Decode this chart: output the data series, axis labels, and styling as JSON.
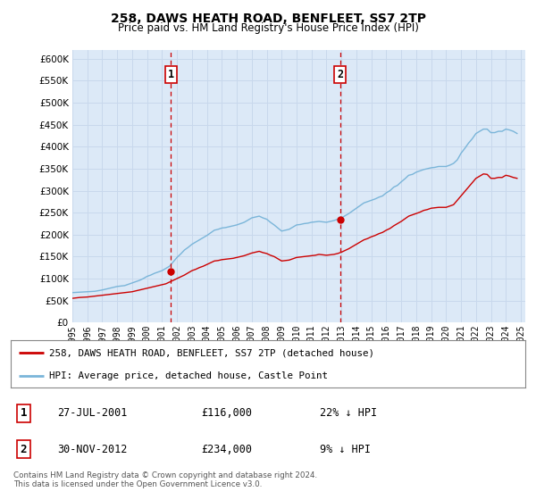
{
  "title": "258, DAWS HEATH ROAD, BENFLEET, SS7 2TP",
  "subtitle": "Price paid vs. HM Land Registry's House Price Index (HPI)",
  "plot_bg_color": "#dce9f7",
  "grid_color": "#c8d8ec",
  "ylim": [
    0,
    620000
  ],
  "yticks": [
    0,
    50000,
    100000,
    150000,
    200000,
    250000,
    300000,
    350000,
    400000,
    450000,
    500000,
    550000,
    600000
  ],
  "ytick_labels": [
    "£0",
    "£50K",
    "£100K",
    "£150K",
    "£200K",
    "£250K",
    "£300K",
    "£350K",
    "£400K",
    "£450K",
    "£500K",
    "£550K",
    "£600K"
  ],
  "red_line_label": "258, DAWS HEATH ROAD, BENFLEET, SS7 2TP (detached house)",
  "blue_line_label": "HPI: Average price, detached house, Castle Point",
  "marker1_x_year": 2001.58,
  "marker1_y": 116000,
  "marker2_x_year": 2012.92,
  "marker2_y": 234000,
  "footer": "Contains HM Land Registry data © Crown copyright and database right 2024.\nThis data is licensed under the Open Government Licence v3.0.",
  "years": [
    1995.0,
    1995.25,
    1995.5,
    1995.75,
    1996.0,
    1996.25,
    1996.5,
    1996.75,
    1997.0,
    1997.25,
    1997.5,
    1997.75,
    1998.0,
    1998.25,
    1998.5,
    1998.75,
    1999.0,
    1999.25,
    1999.5,
    1999.75,
    2000.0,
    2000.25,
    2000.5,
    2000.75,
    2001.0,
    2001.25,
    2001.5,
    2001.75,
    2002.0,
    2002.25,
    2002.5,
    2002.75,
    2003.0,
    2003.25,
    2003.5,
    2003.75,
    2004.0,
    2004.25,
    2004.5,
    2004.75,
    2005.0,
    2005.25,
    2005.5,
    2005.75,
    2006.0,
    2006.25,
    2006.5,
    2006.75,
    2007.0,
    2007.25,
    2007.5,
    2007.75,
    2008.0,
    2008.25,
    2008.5,
    2008.75,
    2009.0,
    2009.25,
    2009.5,
    2009.75,
    2010.0,
    2010.25,
    2010.5,
    2010.75,
    2011.0,
    2011.25,
    2011.5,
    2011.75,
    2012.0,
    2012.25,
    2012.5,
    2012.75,
    2013.0,
    2013.25,
    2013.5,
    2013.75,
    2014.0,
    2014.25,
    2014.5,
    2014.75,
    2015.0,
    2015.25,
    2015.5,
    2015.75,
    2016.0,
    2016.25,
    2016.5,
    2016.75,
    2017.0,
    2017.25,
    2017.5,
    2017.75,
    2018.0,
    2018.25,
    2018.5,
    2018.75,
    2019.0,
    2019.25,
    2019.5,
    2019.75,
    2020.0,
    2020.25,
    2020.5,
    2020.75,
    2021.0,
    2021.25,
    2021.5,
    2021.75,
    2022.0,
    2022.25,
    2022.5,
    2022.75,
    2023.0,
    2023.25,
    2023.5,
    2023.75,
    2024.0,
    2024.25,
    2024.5,
    2024.75
  ],
  "hpi_values": [
    68000,
    68500,
    69000,
    69500,
    70000,
    70500,
    71000,
    72500,
    74000,
    76000,
    78000,
    80000,
    82000,
    83000,
    84000,
    87000,
    90000,
    93000,
    96000,
    100000,
    105000,
    108000,
    112000,
    115000,
    118000,
    123000,
    128000,
    138000,
    148000,
    156000,
    165000,
    171000,
    178000,
    183000,
    188000,
    193000,
    198000,
    204000,
    210000,
    212000,
    215000,
    216000,
    218000,
    220000,
    222000,
    225000,
    228000,
    233000,
    238000,
    240000,
    242000,
    238000,
    235000,
    228000,
    222000,
    215000,
    208000,
    210000,
    212000,
    217000,
    222000,
    223000,
    225000,
    226000,
    228000,
    229000,
    230000,
    229000,
    228000,
    230000,
    232000,
    235000,
    238000,
    243000,
    248000,
    254000,
    260000,
    266000,
    272000,
    275000,
    278000,
    281000,
    285000,
    288000,
    295000,
    300000,
    308000,
    312000,
    320000,
    327000,
    335000,
    337000,
    342000,
    345000,
    348000,
    350000,
    352000,
    353000,
    355000,
    355000,
    355000,
    358000,
    362000,
    370000,
    385000,
    396000,
    408000,
    418000,
    430000,
    435000,
    440000,
    440000,
    432000,
    432000,
    435000,
    435000,
    440000,
    438000,
    435000,
    430000
  ],
  "red_values": [
    55000,
    56000,
    57000,
    57500,
    58000,
    59000,
    60000,
    61000,
    62000,
    63000,
    64000,
    65000,
    66000,
    67000,
    68000,
    69000,
    70000,
    72000,
    74000,
    76000,
    78000,
    80000,
    82000,
    84000,
    86000,
    88000,
    92000,
    96000,
    100000,
    104000,
    108000,
    113000,
    118000,
    121000,
    125000,
    128000,
    132000,
    136000,
    140000,
    141000,
    143000,
    144000,
    145000,
    146000,
    148000,
    150000,
    152000,
    155000,
    158000,
    160000,
    162000,
    159000,
    157000,
    153000,
    150000,
    145000,
    140000,
    141000,
    142000,
    145000,
    148000,
    149000,
    150000,
    151000,
    152000,
    153000,
    155000,
    154000,
    153000,
    154000,
    155000,
    157000,
    160000,
    164000,
    168000,
    173000,
    178000,
    183000,
    188000,
    191000,
    195000,
    198000,
    202000,
    205000,
    210000,
    214000,
    220000,
    225000,
    230000,
    236000,
    242000,
    245000,
    248000,
    251000,
    255000,
    257000,
    260000,
    261000,
    262000,
    262000,
    262000,
    265000,
    268000,
    278000,
    288000,
    298000,
    308000,
    318000,
    328000,
    333000,
    338000,
    337000,
    328000,
    328000,
    330000,
    330000,
    335000,
    333000,
    330000,
    328000
  ],
  "x_tick_years": [
    1995,
    1996,
    1997,
    1998,
    1999,
    2000,
    2001,
    2002,
    2003,
    2004,
    2005,
    2006,
    2007,
    2008,
    2009,
    2010,
    2011,
    2012,
    2013,
    2014,
    2015,
    2016,
    2017,
    2018,
    2019,
    2020,
    2021,
    2022,
    2023,
    2024,
    2025
  ]
}
